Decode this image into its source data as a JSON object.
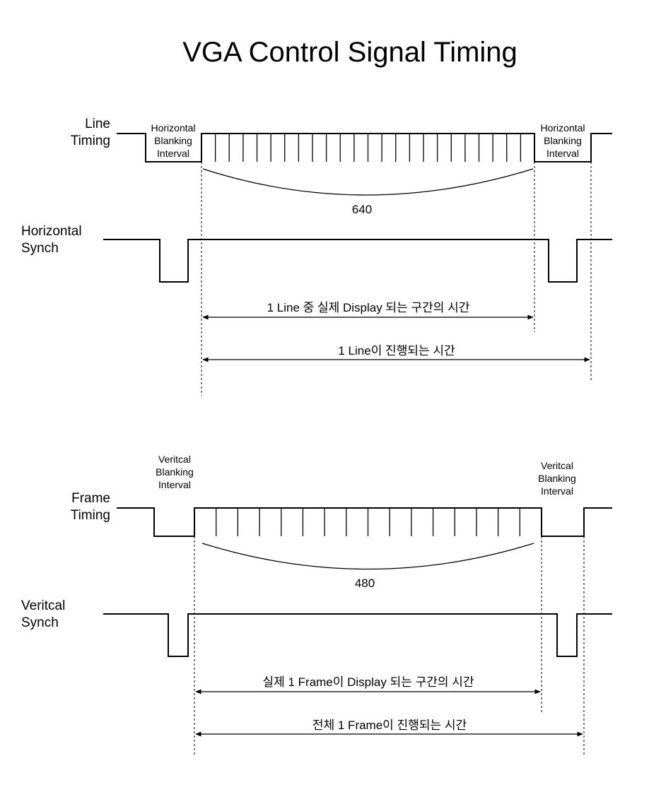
{
  "title": "VGA Control Signal Timing",
  "horizontal": {
    "line_timing_label": "Line\nTiming",
    "blanking_left": "Horizontal\nBlanking\nInterval",
    "blanking_right": "Horizontal\nBlanking\nInterval",
    "pixel_count": "640",
    "synch_label": "Horizontal\nSynch",
    "display_time": "1 Line 중 실제 Display 되는 구간의 시간",
    "total_time": "1 Line이 진행되는 시간"
  },
  "vertical": {
    "frame_timing_label": "Frame\nTiming",
    "blanking_left": "Veritcal\nBlanking\nInterval",
    "blanking_right": "Veritcal\nBlanking\nInterval",
    "line_count": "480",
    "synch_label": "Veritcal\nSynch",
    "display_time": "실제 1 Frame이 Display 되는 구간의 시간",
    "total_time": "전체 1 Frame이 진행되는 시간"
  }
}
